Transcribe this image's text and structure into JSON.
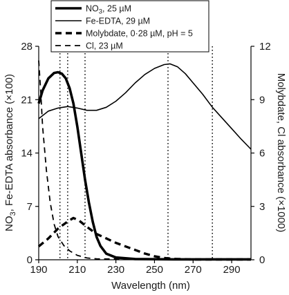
{
  "chart_data": {
    "type": "line",
    "xlabel": "Wavelength (nm)",
    "ylabel_left": "NO3, Fe-EDTA  absorbance (×100)",
    "ylabel_right": "Molybdate, Cl absorbance (×1000)",
    "xlim": [
      190,
      300
    ],
    "ylim_left": [
      0,
      28
    ],
    "ylim_right": [
      0,
      12
    ],
    "x_ticks": [
      "190",
      "210",
      "230",
      "250",
      "270",
      "290"
    ],
    "x_tick_values": [
      190,
      210,
      230,
      250,
      270,
      290
    ],
    "y_ticks_left": [
      "0",
      "7",
      "14",
      "21",
      "28"
    ],
    "y_tick_values_left": [
      0,
      7,
      14,
      21,
      28
    ],
    "y_ticks_right": [
      "0",
      "3",
      "6",
      "9",
      "12"
    ],
    "y_tick_values_right": [
      0,
      3,
      6,
      9,
      12
    ],
    "grid": false,
    "legend_position": "top-center",
    "vertical_markers": [
      201,
      205,
      214,
      257,
      280
    ],
    "series": [
      {
        "name": "NO3, 25 µM",
        "legend_text": {
          "main": "NO",
          "sub": "3",
          "rest": ", 25 µM"
        },
        "axis": "left",
        "style": "thick",
        "color": "#000000",
        "points": [
          [
            190,
            20.5
          ],
          [
            192,
            22.2
          ],
          [
            195,
            23.8
          ],
          [
            198,
            24.5
          ],
          [
            200,
            24.6
          ],
          [
            202,
            24.4
          ],
          [
            204,
            23.8
          ],
          [
            206,
            22.5
          ],
          [
            208,
            20.5
          ],
          [
            210,
            17.5
          ],
          [
            212,
            14.0
          ],
          [
            214,
            10.5
          ],
          [
            216,
            7.5
          ],
          [
            218,
            5.0
          ],
          [
            220,
            3.0
          ],
          [
            222,
            1.8
          ],
          [
            225,
            0.8
          ],
          [
            230,
            0.3
          ],
          [
            240,
            0.1
          ],
          [
            260,
            0.05
          ],
          [
            300,
            0.05
          ]
        ]
      },
      {
        "name": "Fe-EDTA, 29 µM",
        "legend_text": {
          "main": "Fe-EDTA, 29 µM",
          "sub": "",
          "rest": ""
        },
        "axis": "left",
        "style": "thin",
        "color": "#000000",
        "points": [
          [
            190,
            18.5
          ],
          [
            195,
            19.5
          ],
          [
            200,
            19.9
          ],
          [
            205,
            20.1
          ],
          [
            210,
            19.9
          ],
          [
            215,
            19.6
          ],
          [
            220,
            19.6
          ],
          [
            225,
            20.0
          ],
          [
            230,
            20.8
          ],
          [
            235,
            21.9
          ],
          [
            240,
            23.2
          ],
          [
            245,
            24.3
          ],
          [
            250,
            25.1
          ],
          [
            255,
            25.6
          ],
          [
            258,
            25.7
          ],
          [
            262,
            25.3
          ],
          [
            266,
            24.4
          ],
          [
            270,
            23.2
          ],
          [
            275,
            21.7
          ],
          [
            280,
            20.0
          ],
          [
            285,
            18.6
          ],
          [
            290,
            17.2
          ],
          [
            295,
            15.8
          ],
          [
            300,
            14.5
          ]
        ]
      },
      {
        "name": "Molybdate, 0·28 µM, pH = 5",
        "legend_text": {
          "main": "Molybdate, 0·28 µM, pH = 5",
          "sub": "",
          "rest": ""
        },
        "axis": "right",
        "style": "thick-dash",
        "color": "#000000",
        "points": [
          [
            190,
            0.75
          ],
          [
            195,
            1.2
          ],
          [
            200,
            1.75
          ],
          [
            205,
            2.15
          ],
          [
            208,
            2.35
          ],
          [
            211,
            2.2
          ],
          [
            215,
            1.85
          ],
          [
            220,
            1.45
          ],
          [
            225,
            1.2
          ],
          [
            230,
            0.95
          ],
          [
            235,
            0.75
          ],
          [
            240,
            0.55
          ],
          [
            245,
            0.35
          ],
          [
            250,
            0.2
          ],
          [
            255,
            0.1
          ],
          [
            260,
            0.05
          ],
          [
            270,
            0.02
          ],
          [
            300,
            0.02
          ]
        ]
      },
      {
        "name": "Cl, 23 µM",
        "legend_text": {
          "main": "Cl, 23 µM",
          "sub": "",
          "rest": ""
        },
        "axis": "right",
        "style": "thin-dash",
        "color": "#000000",
        "points": [
          [
            190,
            11.2
          ],
          [
            191,
            9.5
          ],
          [
            192,
            7.5
          ],
          [
            194,
            5.0
          ],
          [
            196,
            3.2
          ],
          [
            198,
            2.0
          ],
          [
            200,
            1.3
          ],
          [
            203,
            0.8
          ],
          [
            206,
            0.5
          ],
          [
            210,
            0.25
          ],
          [
            215,
            0.1
          ],
          [
            220,
            0.05
          ],
          [
            300,
            0.02
          ]
        ]
      }
    ]
  }
}
